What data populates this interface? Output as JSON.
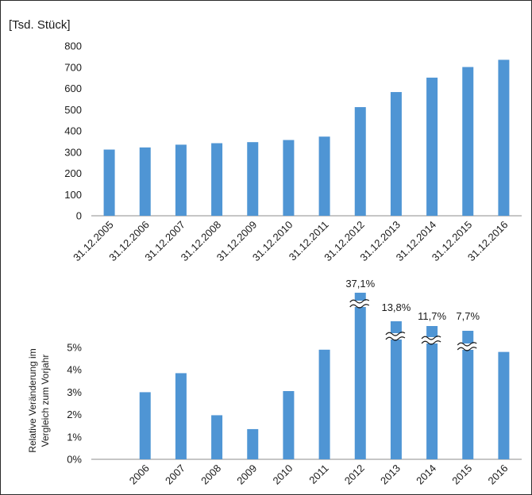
{
  "chart_data": [
    {
      "type": "bar",
      "unit_label": "[Tsd. Stück]",
      "categories": [
        "31.12.2005",
        "31.12.2006",
        "31.12.2007",
        "31.12.2008",
        "31.12.2009",
        "31.12.2010",
        "31.12.2011",
        "31.12.2012",
        "31.12.2013",
        "31.12.2014",
        "31.12.2015",
        "31.12.2016"
      ],
      "values": [
        312,
        322,
        335,
        342,
        347,
        357,
        373,
        512,
        583,
        651,
        701,
        735
      ],
      "yticks": [
        "0",
        "100",
        "200",
        "300",
        "400",
        "500",
        "600",
        "700",
        "800"
      ],
      "ylim": [
        0,
        800
      ],
      "grid": false,
      "color": "#4f95d4"
    },
    {
      "type": "bar",
      "ylabel_line1": "Relative Veränderung im",
      "ylabel_line2": "Vergleich zum Vorjahr",
      "categories": [
        "",
        "2006",
        "2007",
        "2008",
        "2009",
        "2010",
        "2011",
        "2012",
        "2013",
        "2014",
        "2015",
        "2016"
      ],
      "values": [
        null,
        3.0,
        3.85,
        1.97,
        1.35,
        3.05,
        4.9,
        37.1,
        13.8,
        11.7,
        7.7,
        4.8
      ],
      "data_labels": [
        "",
        "",
        "",
        "",
        "",
        "",
        "",
        "37,1%",
        "13,8%",
        "11,7%",
        "7,7%",
        ""
      ],
      "yticks": [
        "0%",
        "1%",
        "2%",
        "3%",
        "4%",
        "5%"
      ],
      "ylim": [
        0,
        5
      ],
      "axis_break": true,
      "grid": false,
      "color": "#4f95d4"
    }
  ]
}
